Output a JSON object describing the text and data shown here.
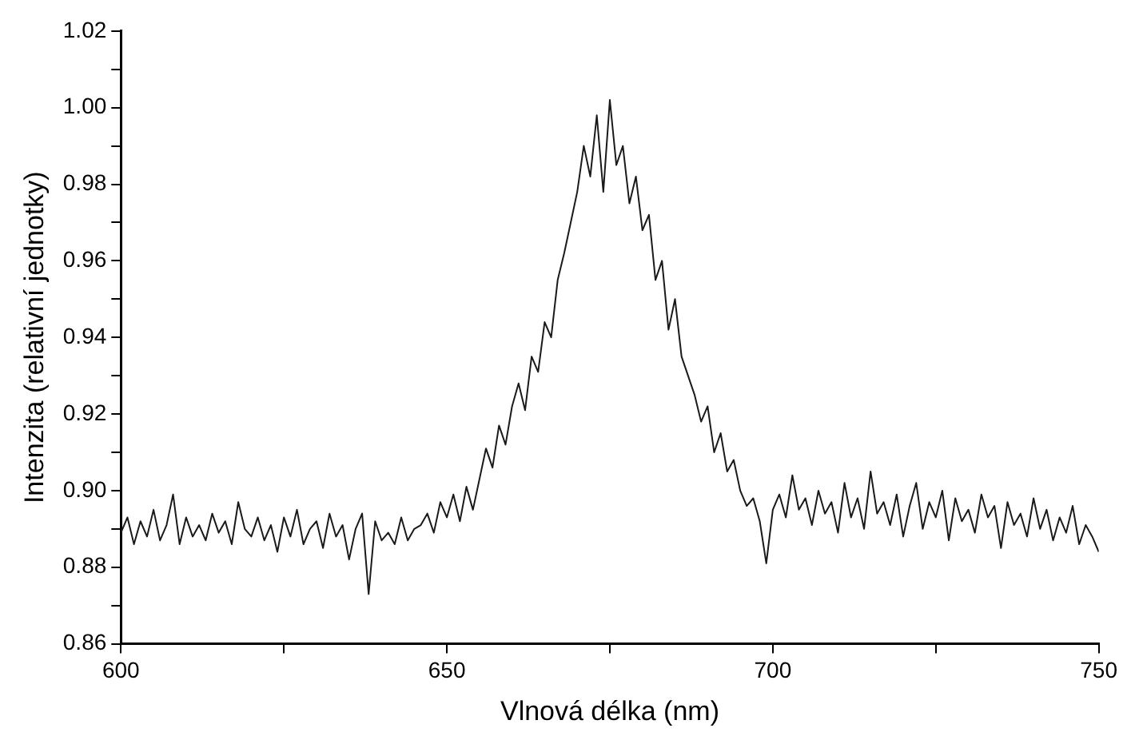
{
  "chart_data": {
    "type": "line",
    "xlabel": "Vlnová délka (nm)",
    "ylabel": "Intenzita (relativní jednotky)",
    "x": [
      600,
      601,
      602,
      603,
      604,
      605,
      606,
      607,
      608,
      609,
      610,
      611,
      612,
      613,
      614,
      615,
      616,
      617,
      618,
      619,
      620,
      621,
      622,
      623,
      624,
      625,
      626,
      627,
      628,
      629,
      630,
      631,
      632,
      633,
      634,
      635,
      636,
      637,
      638,
      639,
      640,
      641,
      642,
      643,
      644,
      645,
      646,
      647,
      648,
      649,
      650,
      651,
      652,
      653,
      654,
      655,
      656,
      657,
      658,
      659,
      660,
      661,
      662,
      663,
      664,
      665,
      666,
      667,
      668,
      669,
      670,
      671,
      672,
      673,
      674,
      675,
      676,
      677,
      678,
      679,
      680,
      681,
      682,
      683,
      684,
      685,
      686,
      687,
      688,
      689,
      690,
      691,
      692,
      693,
      694,
      695,
      696,
      697,
      698,
      699,
      700,
      701,
      702,
      703,
      704,
      705,
      706,
      707,
      708,
      709,
      710,
      711,
      712,
      713,
      714,
      715,
      716,
      717,
      718,
      719,
      720,
      721,
      722,
      723,
      724,
      725,
      726,
      727,
      728,
      729,
      730,
      731,
      732,
      733,
      734,
      735,
      736,
      737,
      738,
      739,
      740,
      741,
      742,
      743,
      744,
      745,
      746,
      747,
      748,
      749,
      750
    ],
    "series": [
      {
        "color": "#1a1a1a",
        "values": [
          0.889,
          0.893,
          0.886,
          0.892,
          0.888,
          0.895,
          0.887,
          0.891,
          0.899,
          0.886,
          0.893,
          0.888,
          0.891,
          0.887,
          0.894,
          0.889,
          0.892,
          0.886,
          0.897,
          0.89,
          0.888,
          0.893,
          0.887,
          0.891,
          0.884,
          0.893,
          0.888,
          0.895,
          0.886,
          0.89,
          0.892,
          0.885,
          0.894,
          0.888,
          0.891,
          0.882,
          0.89,
          0.894,
          0.873,
          0.892,
          0.887,
          0.889,
          0.886,
          0.893,
          0.887,
          0.89,
          0.891,
          0.894,
          0.889,
          0.897,
          0.893,
          0.899,
          0.892,
          0.901,
          0.895,
          0.903,
          0.911,
          0.906,
          0.917,
          0.912,
          0.922,
          0.928,
          0.921,
          0.935,
          0.931,
          0.944,
          0.94,
          0.955,
          0.962,
          0.97,
          0.978,
          0.99,
          0.982,
          0.998,
          0.978,
          1.002,
          0.985,
          0.99,
          0.975,
          0.982,
          0.968,
          0.972,
          0.955,
          0.96,
          0.942,
          0.95,
          0.935,
          0.93,
          0.925,
          0.918,
          0.922,
          0.91,
          0.915,
          0.905,
          0.908,
          0.9,
          0.896,
          0.898,
          0.892,
          0.881,
          0.895,
          0.899,
          0.893,
          0.904,
          0.895,
          0.898,
          0.891,
          0.9,
          0.894,
          0.897,
          0.889,
          0.902,
          0.893,
          0.898,
          0.89,
          0.905,
          0.894,
          0.897,
          0.891,
          0.899,
          0.888,
          0.896,
          0.902,
          0.89,
          0.897,
          0.893,
          0.9,
          0.887,
          0.898,
          0.892,
          0.895,
          0.889,
          0.899,
          0.893,
          0.896,
          0.885,
          0.897,
          0.891,
          0.894,
          0.888,
          0.898,
          0.89,
          0.895,
          0.887,
          0.893,
          0.889,
          0.896,
          0.886,
          0.891,
          0.888,
          0.884
        ]
      }
    ],
    "xlim": [
      600,
      750
    ],
    "xticks": [
      600,
      {
        "value": 625,
        "label": null
      },
      650,
      {
        "value": 675,
        "label": null
      },
      700,
      {
        "value": 725,
        "label": null
      },
      750
    ],
    "ylim": [
      0.86,
      1.02
    ],
    "yticks": [
      0.86,
      {
        "value": 0.87,
        "label": null
      },
      0.88,
      {
        "value": 0.89,
        "label": null
      },
      {
        "value": 0.9,
        "label": "0.90"
      },
      {
        "value": 0.91,
        "label": null
      },
      0.92,
      {
        "value": 0.93,
        "label": null
      },
      0.94,
      {
        "value": 0.95,
        "label": null
      },
      0.96,
      {
        "value": 0.97,
        "label": null
      },
      0.98,
      {
        "value": 0.99,
        "label": null
      },
      {
        "value": 1.0,
        "label": "1.00"
      },
      {
        "value": 1.01,
        "label": null
      },
      {
        "value": 1.02,
        "label": "1.02"
      }
    ],
    "grid": false,
    "legend": false,
    "marker": "none",
    "line_style": "solid"
  }
}
